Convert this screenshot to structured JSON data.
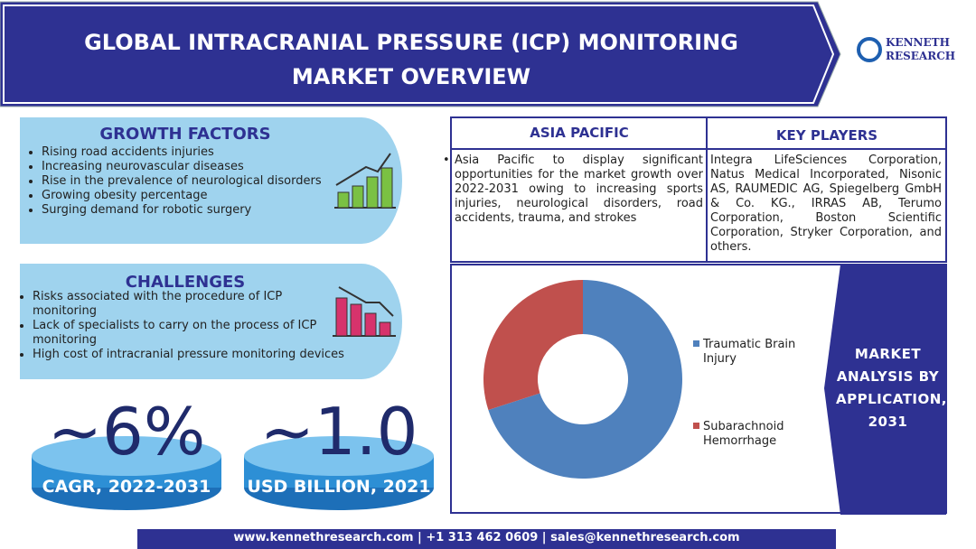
{
  "header": {
    "title_lines": [
      "GLOBAL INTRACRANIAL PRESSURE (ICP) MONITORING",
      "MARKET OVERVIEW"
    ],
    "logo": [
      "KENNETH",
      "RESEARCH"
    ]
  },
  "growth_factors": {
    "title": "GROWTH FACTORS",
    "items": [
      "Rising road accidents injuries",
      "Increasing neurovascular diseases",
      "Rise in the prevalence of neurological disorders",
      "Growing obesity percentage",
      "Surging demand for robotic surgery"
    ]
  },
  "challenges": {
    "title": "CHALLENGES",
    "items": [
      "Risks associated with the procedure of ICP monitoring",
      "Lack of specialists to carry on the process of ICP monitoring",
      "High cost of intracranial pressure monitoring devices"
    ]
  },
  "stats": [
    {
      "value": "~6%",
      "label": "CAGR, 2022-2031"
    },
    {
      "value": "~1.0",
      "label": "USD BILLION, 2021"
    }
  ],
  "asia_pacific": {
    "title": "ASIA PACIFIC",
    "text": "Asia Pacific to display significant opportunities for the market growth over 2022-2031 owing to increasing sports injuries, neurological disorders, road accidents, trauma, and strokes"
  },
  "key_players": {
    "title": "KEY PLAYERS",
    "text": "Integra LifeSciences Corporation, Natus Medical Incorporated, Nisonic AS, RAUMEDIC AG, Spiegelberg GmbH & Co. KG., IRRAS AB, Terumo Corporation, Boston Scientific Corporation, Stryker Corporation, and others."
  },
  "chart_data": {
    "type": "pie",
    "categories": [
      "Traumatic Brain Injury",
      "Subarachnoid Hemorrhage"
    ],
    "values": [
      70,
      30
    ],
    "colors": [
      "#4f81bd",
      "#c0504d"
    ]
  },
  "market_panel": "MARKET ANALYSIS BY APPLICATION, 2031",
  "footer": "www.kennethresearch.com | +1 313 462 0609 | sales@kennethresearch.com"
}
